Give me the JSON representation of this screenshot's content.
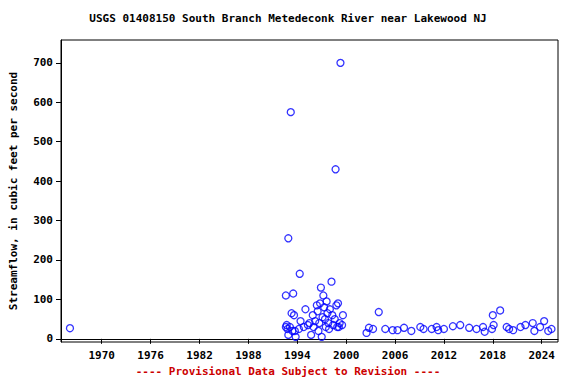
{
  "chart_data": {
    "type": "scatter",
    "title": "USGS 01408150 South Branch Metedeconk River near Lakewood NJ",
    "y_label": "Streamflow, in cubic feet per second",
    "annotation": "---- Provisional Data Subject to Revision ----",
    "color": "#0000ff",
    "marker": "circle_open",
    "grid": false,
    "xlim": [
      1965,
      2026
    ],
    "xticks": [
      1970,
      1976,
      1982,
      1988,
      1994,
      2000,
      2006,
      2012,
      2018,
      2024
    ],
    "ylim": [
      -8,
      758
    ],
    "yticks": [
      0,
      100,
      200,
      300,
      400,
      500,
      600,
      700
    ],
    "x": [
      1966.1,
      1992.6,
      1992.6,
      1992.7,
      1992.8,
      1992.9,
      1992.9,
      1993.2,
      1993.1,
      1993.3,
      1993.4,
      1993.5,
      1993.6,
      1993.7,
      1993.8,
      1994.3,
      1994.2,
      1994.4,
      1994.8,
      1995.0,
      1995.3,
      1995.5,
      1995.7,
      1995.9,
      1996.0,
      1996.2,
      1996.4,
      1996.5,
      1996.6,
      1996.7,
      1996.8,
      1996.9,
      1997.0,
      1997.1,
      1997.2,
      1997.3,
      1997.4,
      1997.5,
      1997.6,
      1997.7,
      1997.8,
      1997.9,
      1998.0,
      1998.2,
      1998.3,
      1998.4,
      1998.6,
      1998.7,
      1998.8,
      1998.9,
      1999.0,
      1999.1,
      1999.2,
      1999.3,
      1999.5,
      1999.6,
      2002.5,
      2002.8,
      2003.3,
      2004.0,
      2004.8,
      2005.7,
      2006.3,
      2007.1,
      2008.0,
      2009.1,
      2009.5,
      2010.5,
      2011.1,
      2011.3,
      2012.0,
      2013.1,
      2014.0,
      2015.1,
      2016.0,
      2016.8,
      2017.0,
      2017.9,
      2018.0,
      2018.1,
      2018.9,
      2019.7,
      2020.0,
      2020.5,
      2021.4,
      2022.0,
      2022.9,
      2023.1,
      2023.8,
      2024.3,
      2024.8,
      2025.2
    ],
    "values": [
      27,
      30,
      110,
      35,
      25,
      255,
      10,
      575,
      30,
      65,
      20,
      115,
      60,
      20,
      5,
      165,
      25,
      45,
      30,
      75,
      35,
      40,
      10,
      60,
      30,
      45,
      85,
      70,
      20,
      40,
      90,
      130,
      5,
      55,
      110,
      80,
      50,
      30,
      95,
      65,
      40,
      25,
      75,
      145,
      60,
      35,
      50,
      430,
      85,
      30,
      90,
      30,
      40,
      700,
      35,
      60,
      15,
      28,
      25,
      68,
      25,
      22,
      22,
      28,
      20,
      30,
      25,
      25,
      30,
      22,
      25,
      32,
      35,
      28,
      25,
      30,
      18,
      25,
      60,
      35,
      72,
      30,
      25,
      22,
      30,
      35,
      40,
      20,
      30,
      45,
      20,
      25
    ]
  }
}
